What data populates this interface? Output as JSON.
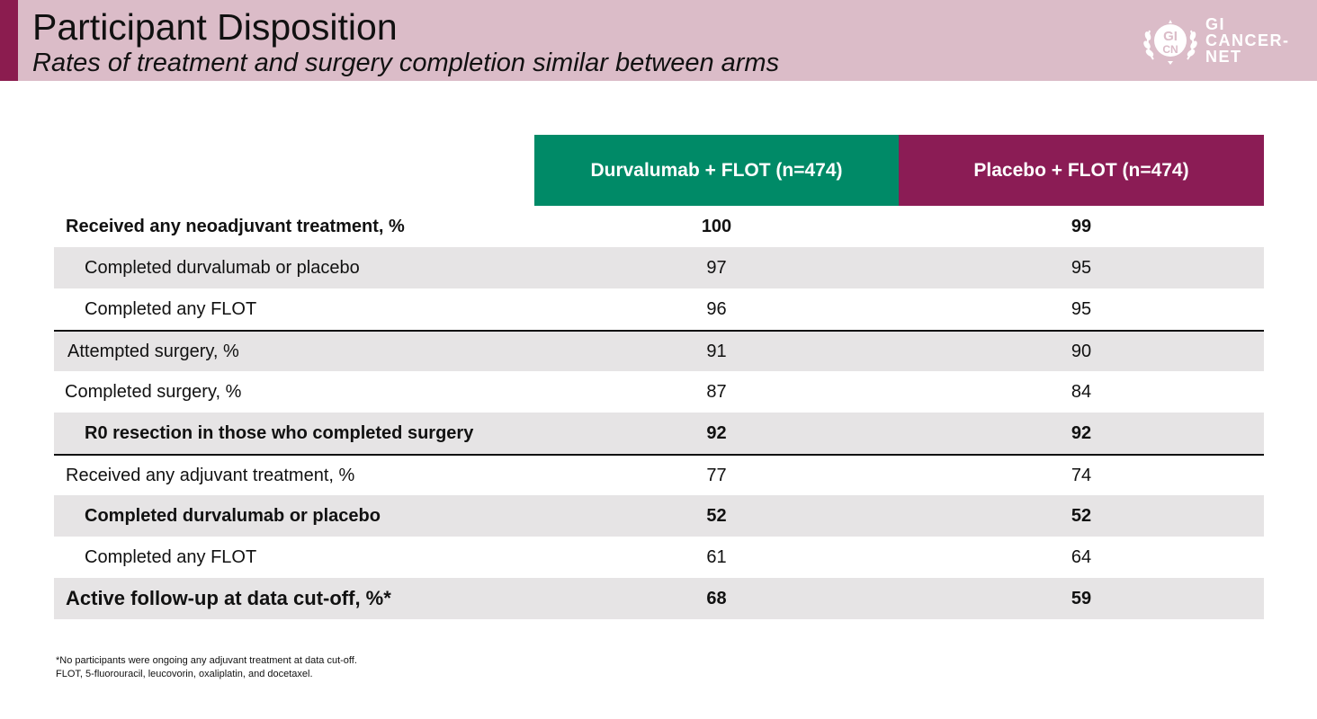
{
  "header": {
    "title": "Participant Disposition",
    "subtitle": "Rates of treatment and surgery completion similar between arms",
    "logo": {
      "emblem_top": "GI",
      "emblem_bottom": "CN",
      "lines": [
        "GI",
        "CANCER-",
        "NET"
      ]
    }
  },
  "table": {
    "columns": [
      "Durvalumab + FLOT (n=474)",
      "Placebo + FLOT (n=474)"
    ],
    "rows": [
      {
        "label": "Received any neoadjuvant treatment, %",
        "durva": "100",
        "placebo": "99"
      },
      {
        "label": "Completed durvalumab or placebo",
        "durva": "97",
        "placebo": "95"
      },
      {
        "label": "Completed any FLOT",
        "durva": "96",
        "placebo": "95"
      },
      {
        "label": "Attempted surgery, %",
        "durva": "91",
        "placebo": "90"
      },
      {
        "label": "Completed surgery, %",
        "durva": "87",
        "placebo": "84"
      },
      {
        "label": "R0 resection in those who completed surgery",
        "durva": "92",
        "placebo": "92"
      },
      {
        "label": "Received any adjuvant treatment, %",
        "durva": "77",
        "placebo": "74"
      },
      {
        "label": "Completed durvalumab or placebo",
        "durva": "52",
        "placebo": "52"
      },
      {
        "label": "Completed any FLOT",
        "durva": "61",
        "placebo": "64"
      },
      {
        "label": "Active follow-up at data cut-off, %*",
        "durva": "68",
        "placebo": "59"
      }
    ]
  },
  "footnotes": [
    "*No participants were ongoing any adjuvant treatment at data cut-off.",
    "FLOT, 5-fluorouracil, leucovorin, oxaliplatin, and docetaxel."
  ],
  "colors": {
    "header_bg": "#dbbcc8",
    "accent": "#8b1c4f",
    "durva_header": "#008a67",
    "placebo_header": "#8b1c55",
    "row_shade": "#e6e4e5"
  }
}
